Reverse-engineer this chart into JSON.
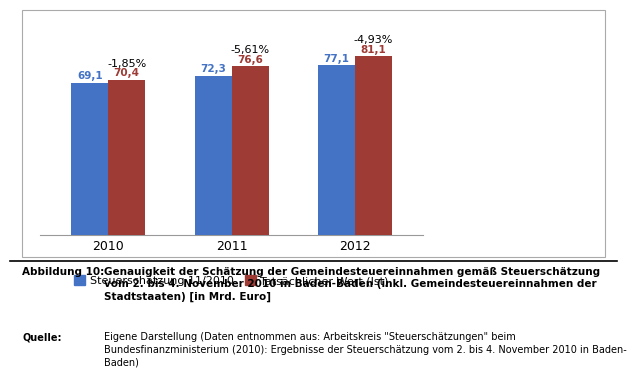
{
  "years": [
    "2010",
    "2011",
    "2012"
  ],
  "schaetzung": [
    69.1,
    72.3,
    77.1
  ],
  "tatsaechlich": [
    70.4,
    76.6,
    81.1
  ],
  "percentages": [
    "-1,85%",
    "-5,61%",
    "-4,93%"
  ],
  "color_blue": "#4472C4",
  "color_red": "#9E3B35",
  "ylim": [
    0,
    92
  ],
  "bar_width": 0.3,
  "legend_labels": [
    "Steuerschätzung 11/2010",
    "Tatsächlicher Wert (Ist)"
  ],
  "caption_label": "Abbildung 10:",
  "caption_text": "Genauigkeit der Schätzung der Gemeindesteuereinnahmen gemäß Steuerschätzung\nvom 2. bis 4. November 2010 in Baden-Baden (inkl. Gemeindesteuereinnahmen der\nStadtstaaten) [in Mrd. Euro]",
  "source_label": "Quelle:",
  "source_text": "Eigene Darstellung (Daten entnommen aus: Arbeitskreis \"Steuerschätzungen\" beim\nBundesfinanzministerium (2010): Ergebnisse der Steuerschätzung vom 2. bis 4. November 2010 in Baden-\nBaden)"
}
